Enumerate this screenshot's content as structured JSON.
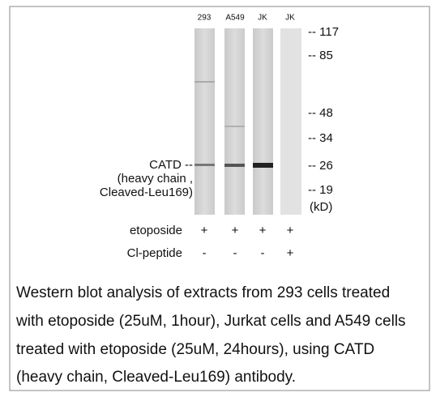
{
  "lanes": [
    "293",
    "A549",
    "JK",
    "JK"
  ],
  "markers": [
    "-- 117",
    "-- 85",
    "-- 48",
    "-- 34",
    "-- 26",
    "-- 19"
  ],
  "unit": "(kD)",
  "band_label": [
    "CATD --",
    "(heavy chain ,",
    "Cleaved-Leu169)"
  ],
  "treatments": [
    {
      "name": "etoposide",
      "values": [
        "+",
        "+",
        "+",
        "+"
      ]
    },
    {
      "name": "Cl-peptide",
      "values": [
        "-",
        "-",
        "-",
        "+"
      ]
    }
  ],
  "caption": [
    "Western blot analysis of extracts from 293 cells treated",
    "with etoposide (25uM, 1hour), Jurkat cells and A549 cells",
    "treated with etoposide (25uM, 24hours), using CATD",
    "(heavy chain, Cleaved-Leu169) antibody."
  ]
}
